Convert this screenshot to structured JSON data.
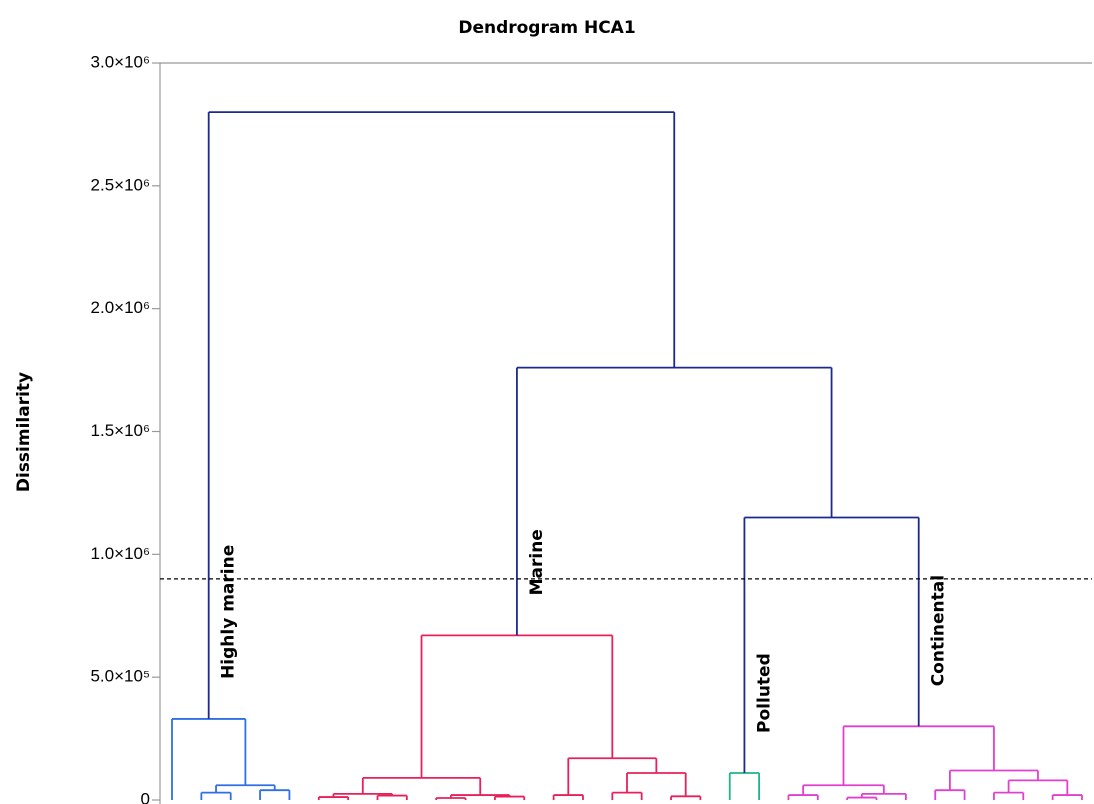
{
  "chart_data": {
    "type": "dendrogram",
    "title": "Dendrogram HCA1",
    "y_label": "Dissimilarity",
    "ylim": [
      0,
      3000000
    ],
    "yticks": [
      0,
      {
        "value": 500000,
        "label": "5.0×10⁵"
      },
      {
        "value": 1000000,
        "label": "1.0×10⁶"
      },
      {
        "value": 1500000,
        "label": "1.5×10⁶"
      },
      {
        "value": 2000000,
        "label": "2.0×10⁶"
      },
      {
        "value": 2500000,
        "label": "2.5×10⁶"
      },
      {
        "value": 3000000,
        "label": "3.0×10⁶"
      }
    ],
    "threshold": 900000,
    "tree": {
      "height": 2800000,
      "color": "#1c2a8f",
      "children": [
        {
          "height": 330000,
          "color": "#2f6fe4",
          "label": "Highly marine",
          "children": [
            {
              "height": 0
            },
            {
              "height": 60000,
              "children": [
                {
                  "height": 30000,
                  "children": [
                    {
                      "height": 0
                    },
                    {
                      "height": 0
                    }
                  ]
                },
                {
                  "height": 40000,
                  "children": [
                    {
                      "height": 0
                    },
                    {
                      "height": 0
                    }
                  ]
                }
              ]
            }
          ]
        },
        {
          "height": 1760000,
          "children": [
            {
              "height": 670000,
              "color": "#e8205a",
              "label": "Marine",
              "children": [
                {
                  "height": 90000,
                  "children": [
                    {
                      "height": 25000,
                      "children": [
                        {
                          "height": 12000,
                          "children": [
                            {
                              "height": 0
                            },
                            {
                              "height": 0
                            }
                          ]
                        },
                        {
                          "height": 18000,
                          "children": [
                            {
                              "height": 0
                            },
                            {
                              "height": 0
                            }
                          ]
                        }
                      ]
                    },
                    {
                      "height": 20000,
                      "children": [
                        {
                          "height": 8000,
                          "children": [
                            {
                              "height": 0
                            },
                            {
                              "height": 0
                            }
                          ]
                        },
                        {
                          "height": 14000,
                          "children": [
                            {
                              "height": 0
                            },
                            {
                              "height": 0
                            }
                          ]
                        }
                      ]
                    }
                  ]
                },
                {
                  "height": 170000,
                  "children": [
                    {
                      "height": 20000,
                      "children": [
                        {
                          "height": 0
                        },
                        {
                          "height": 0
                        }
                      ]
                    },
                    {
                      "height": 110000,
                      "children": [
                        {
                          "height": 30000,
                          "children": [
                            {
                              "height": 0
                            },
                            {
                              "height": 0
                            }
                          ]
                        },
                        {
                          "height": 15000,
                          "children": [
                            {
                              "height": 0
                            },
                            {
                              "height": 0
                            }
                          ]
                        }
                      ]
                    }
                  ]
                }
              ]
            },
            {
              "height": 1150000,
              "children": [
                {
                  "height": 110000,
                  "color": "#1fb58a",
                  "label": "Polluted",
                  "children": [
                    {
                      "height": 0
                    },
                    {
                      "height": 0
                    }
                  ]
                },
                {
                  "height": 300000,
                  "color": "#e040d0",
                  "label": "Continental",
                  "children": [
                    {
                      "height": 60000,
                      "children": [
                        {
                          "height": 20000,
                          "children": [
                            {
                              "height": 0
                            },
                            {
                              "height": 0
                            }
                          ]
                        },
                        {
                          "height": 25000,
                          "children": [
                            {
                              "height": 10000,
                              "children": [
                                {
                                  "height": 0
                                },
                                {
                                  "height": 0
                                }
                              ]
                            },
                            {
                              "height": 0
                            }
                          ]
                        }
                      ]
                    },
                    {
                      "height": 120000,
                      "children": [
                        {
                          "height": 40000,
                          "children": [
                            {
                              "height": 0
                            },
                            {
                              "height": 0
                            }
                          ]
                        },
                        {
                          "height": 80000,
                          "children": [
                            {
                              "height": 30000,
                              "children": [
                                {
                                  "height": 0
                                },
                                {
                                  "height": 0
                                }
                              ]
                            },
                            {
                              "height": 20000,
                              "children": [
                                {
                                  "height": 0
                                },
                                {
                                  "height": 0
                                }
                              ]
                            }
                          ]
                        }
                      ]
                    }
                  ]
                }
              ]
            }
          ]
        }
      ]
    }
  }
}
